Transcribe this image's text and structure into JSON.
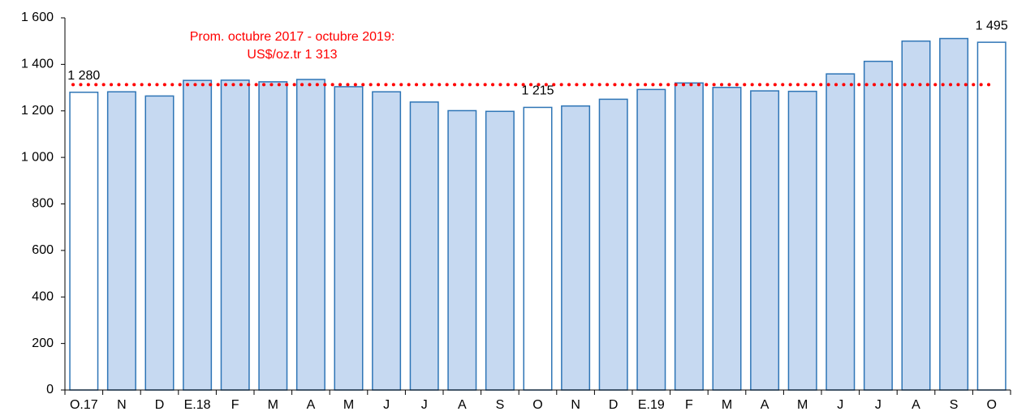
{
  "chart_data": {
    "type": "bar",
    "categories": [
      "O.17",
      "N",
      "D",
      "E.18",
      "F",
      "M",
      "A",
      "M",
      "J",
      "J",
      "A",
      "S",
      "O",
      "N",
      "D",
      "E.19",
      "F",
      "M",
      "A",
      "M",
      "J",
      "J",
      "A",
      "S",
      "O"
    ],
    "values": [
      1280,
      1282,
      1264,
      1331,
      1332,
      1325,
      1335,
      1304,
      1282,
      1238,
      1201,
      1198,
      1215,
      1221,
      1250,
      1292,
      1320,
      1301,
      1286,
      1284,
      1359,
      1413,
      1500,
      1511,
      1495
    ],
    "value_labels": [
      "1 280",
      null,
      null,
      null,
      null,
      null,
      null,
      null,
      null,
      null,
      null,
      null,
      "1 215",
      null,
      null,
      null,
      null,
      null,
      null,
      null,
      null,
      null,
      null,
      null,
      "1 495"
    ],
    "colors": [
      "#ffffff",
      "#c6d9f1",
      "#c6d9f1",
      "#c6d9f1",
      "#c6d9f1",
      "#c6d9f1",
      "#c6d9f1",
      "#c6d9f1",
      "#c6d9f1",
      "#c6d9f1",
      "#c6d9f1",
      "#c6d9f1",
      "#ffffff",
      "#c6d9f1",
      "#c6d9f1",
      "#c6d9f1",
      "#c6d9f1",
      "#c6d9f1",
      "#c6d9f1",
      "#c6d9f1",
      "#c6d9f1",
      "#c6d9f1",
      "#c6d9f1",
      "#c6d9f1",
      "#ffffff"
    ],
    "edge_color": "#2e75b6",
    "ylim": [
      0,
      1600
    ],
    "yticks": [
      0,
      200,
      400,
      600,
      800,
      {
        "value": 1000,
        "label": "1 000"
      },
      {
        "value": 1200,
        "label": "1 200"
      },
      {
        "value": 1400,
        "label": "1 400"
      },
      {
        "value": 1600,
        "label": "1 600"
      }
    ],
    "grid": false,
    "reference_line": {
      "value": 1313,
      "color": "#ff0000",
      "label": [
        "Prom.  octubre 2017 - octubre 2019:",
        "US$/oz.tr 1 313"
      ]
    }
  }
}
